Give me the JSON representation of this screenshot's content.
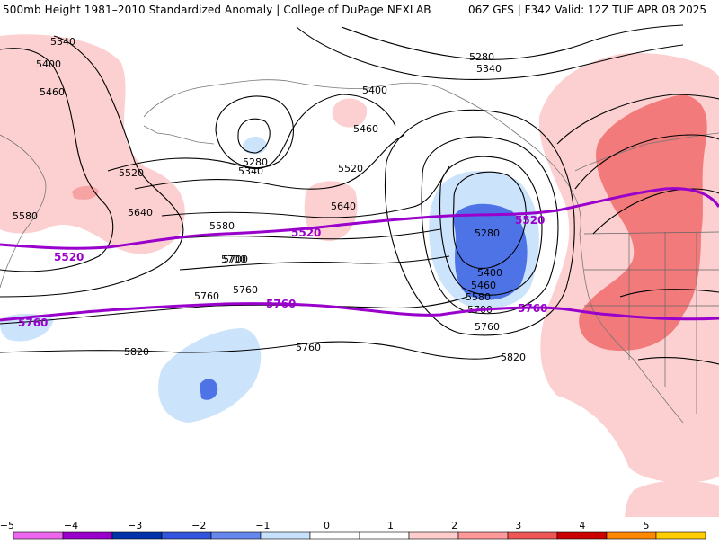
{
  "header": {
    "title": "500mb Height 1981–2010 Standardized Anomaly | College of DuPage NEXLAB",
    "run_info": "06Z GFS | F342 Valid: 12Z TUE APR 08 2025"
  },
  "contour_labels": [
    "5340",
    "5400",
    "5460",
    "5520",
    "5580",
    "5640",
    "5700",
    "5760",
    "5820",
    "5280",
    "5340",
    "5280",
    "5400",
    "5460",
    "5520",
    "5640",
    "5580",
    "5700",
    "5760",
    "5760",
    "5340",
    "5280",
    "5400",
    "5460",
    "5580",
    "5700",
    "5760",
    "5820"
  ],
  "reference_labels": [
    "5520",
    "5520",
    "5760",
    "5760",
    "5760"
  ],
  "colorbar": {
    "ticks": [
      "−5",
      "−4",
      "−3",
      "−2",
      "−1",
      "0",
      "1",
      "2",
      "3",
      "4",
      "5"
    ],
    "colors": [
      "#ee66ee",
      "#9900cc",
      "#0033aa",
      "#3355dd",
      "#6688ee",
      "#c8e0fa",
      "#ffffff",
      "#ffffff",
      "#ffcccc",
      "#ff9999",
      "#ee5555",
      "#cc0000",
      "#ff8800",
      "#ffcc00"
    ]
  }
}
